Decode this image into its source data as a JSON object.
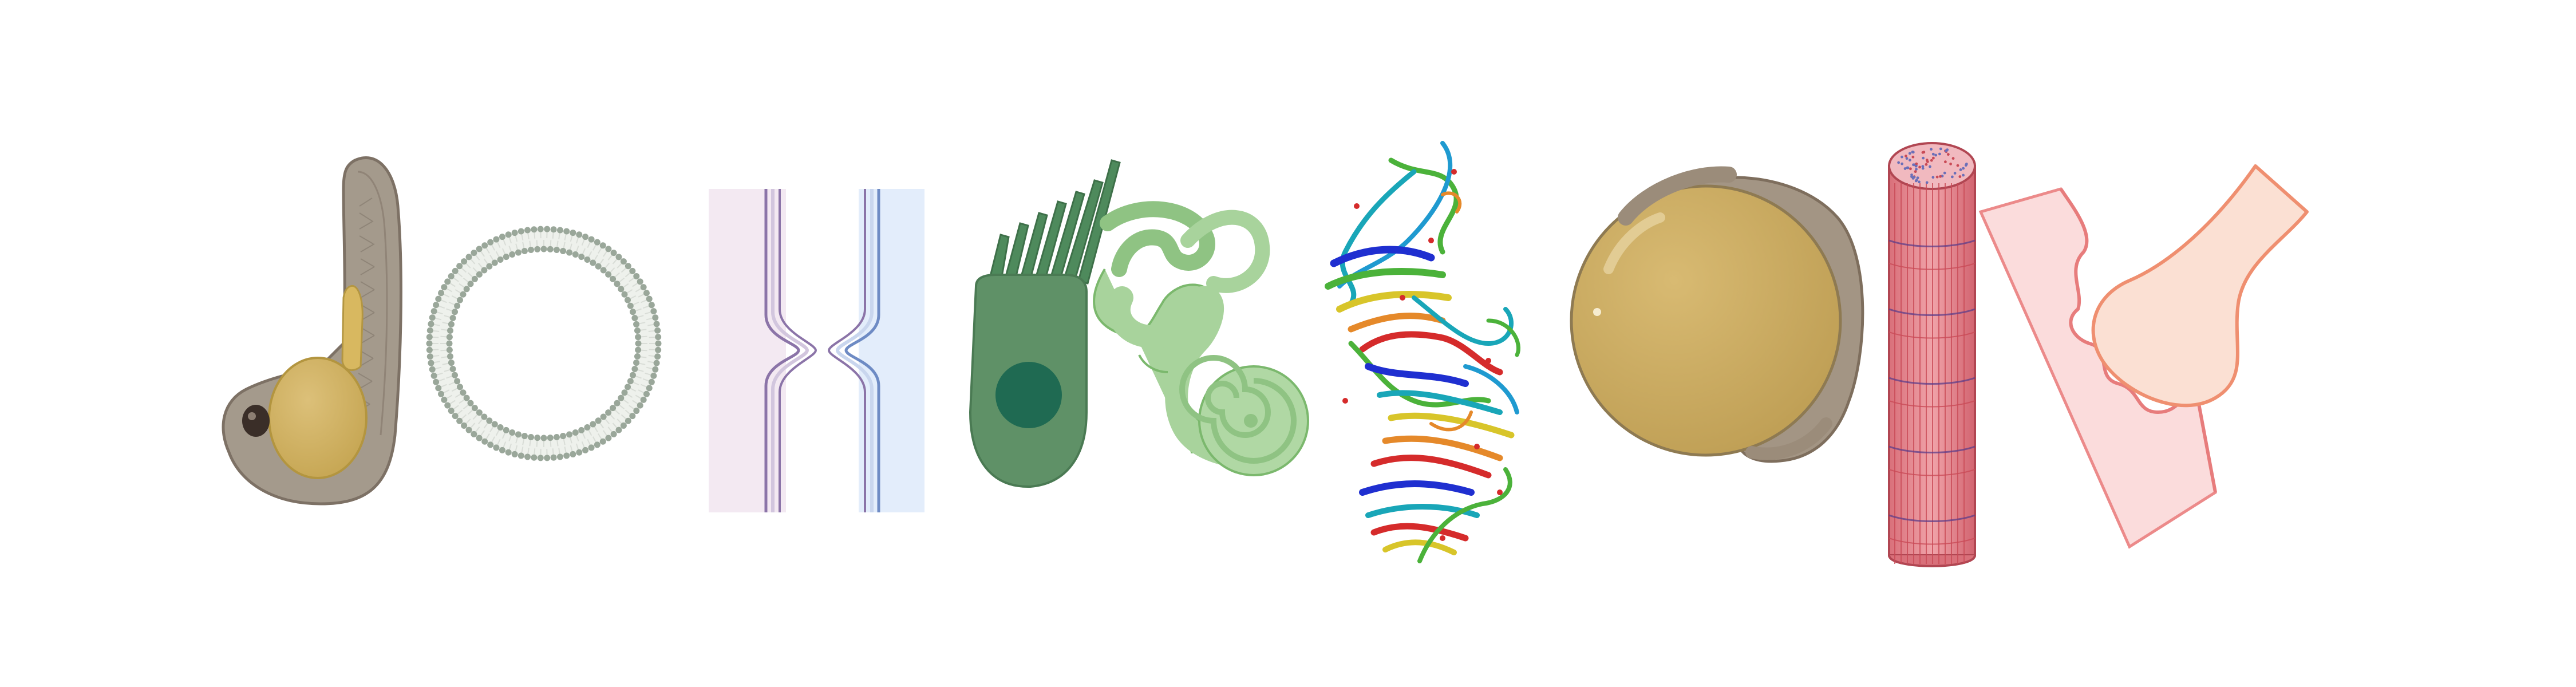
{
  "figure": {
    "background": "#ffffff",
    "panels": [
      {
        "name": "zebrafish-embryo-illustration",
        "colors": {
          "body": "#9f9588",
          "yolk": "#d2b25f",
          "outline": "#7d7165"
        }
      },
      {
        "name": "liposome-ring-illustration",
        "colors": {
          "bead": "#9aa79a",
          "tail": "#d9ddd7"
        }
      },
      {
        "name": "membrane-fusion-pore-illustration",
        "colors": {
          "left": "#f3e9f2",
          "right": "#e3edfb",
          "line": "#8b74a8"
        }
      },
      {
        "name": "hair-cell-illustration",
        "colors": {
          "body": "#5f9167",
          "nucleus": "#1f6a52",
          "stereocilia": "#4e8a5c"
        }
      },
      {
        "name": "inner-ear-labyrinth-illustration",
        "colors": {
          "fill": "#a8d39c",
          "outline": "#7bb86d",
          "dark": "#8fc383"
        }
      },
      {
        "name": "protein-ribbon-structure-illustration",
        "colors": {
          "blue": "#1f2fd0",
          "cyan": "#19a6b8",
          "green": "#4bb23a",
          "yellow": "#d8c52a",
          "orange": "#e5892a",
          "red": "#d52b2b"
        }
      },
      {
        "name": "oocyte-egg-illustration",
        "colors": {
          "yolk": "#cfb067",
          "membrane": "#a39584",
          "outline": "#7e6e5d"
        }
      },
      {
        "name": "muscle-fiber-illustration",
        "colors": {
          "fill": "#eb8b92",
          "stripe": "#c94a56",
          "top": "#f1b9bf",
          "band": "#5e3d8a"
        }
      },
      {
        "name": "synaptic-junction-illustration",
        "colors": {
          "postsynaptic": "#fbdcdc",
          "terminal": "#fbe0d3",
          "outline": "#ef8f70"
        }
      }
    ]
  }
}
